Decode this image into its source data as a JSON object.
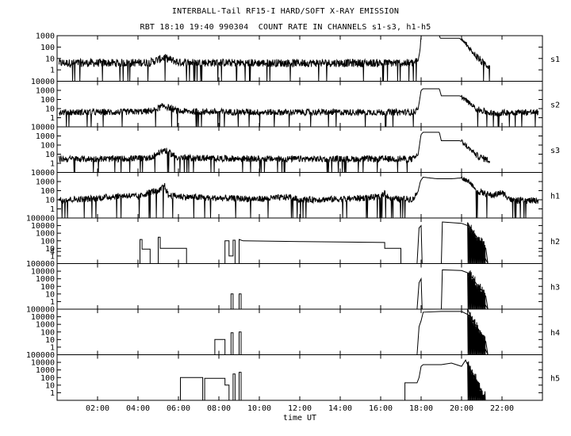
{
  "header": {
    "title": "INTERBALL-Tail RF15-I HARD/SOFT X-RAY EMISSION",
    "subtitle": "RBT 18:10 19:40 990304  COUNT RATE IN CHANNELS s1-s3, h1-h5"
  },
  "chart_data": {
    "type": "line",
    "title": "INTERBALL-Tail RF15-I HARD/SOFT X-RAY EMISSION",
    "subtitle": "RBT 18:10 19:40 990304  COUNT RATE IN CHANNELS s1-s3, h1-h5",
    "xlabel": "time UT",
    "x_range_hours": [
      0,
      24
    ],
    "x_ticks": [
      {
        "value": 2,
        "label": "02:00"
      },
      {
        "value": 4,
        "label": "04:00"
      },
      {
        "value": 6,
        "label": "06:00"
      },
      {
        "value": 8,
        "label": "08:00"
      },
      {
        "value": 10,
        "label": "10:00"
      },
      {
        "value": 12,
        "label": "12:00"
      },
      {
        "value": 14,
        "label": "14:00"
      },
      {
        "value": 16,
        "label": "16:00"
      },
      {
        "value": 18,
        "label": "18:00"
      },
      {
        "value": 20,
        "label": "20:00"
      },
      {
        "value": 22,
        "label": "22:00"
      }
    ],
    "y_scale": "log",
    "panels": [
      {
        "name": "s1",
        "y_range": [
          0.1,
          1000
        ],
        "y_ticks": [
          {
            "value": 1,
            "label": "1"
          },
          {
            "value": 10,
            "label": "10"
          },
          {
            "value": 100,
            "label": "100"
          },
          {
            "value": 1000,
            "label": "1000"
          }
        ],
        "kind": "noisy",
        "series": [
          [
            0.1,
            4
          ],
          [
            3,
            4
          ],
          [
            4.6,
            4.5
          ],
          [
            5.3,
            12
          ],
          [
            6,
            4.5
          ],
          [
            10,
            4
          ],
          [
            14,
            4
          ],
          [
            17.6,
            4
          ],
          [
            17.85,
            6
          ],
          [
            17.95,
            60
          ],
          [
            18.0,
            1000
          ],
          [
            18.9,
            1000
          ],
          [
            18.95,
            600
          ],
          [
            19.1,
            600
          ],
          [
            19.9,
            600
          ],
          [
            20.0,
            400
          ],
          [
            20.2,
            200
          ],
          [
            20.6,
            30
          ],
          [
            21.0,
            5
          ],
          [
            21.4,
            2
          ]
        ]
      },
      {
        "name": "s2",
        "y_range": [
          0.1,
          10000
        ],
        "y_ticks": [
          {
            "value": 1,
            "label": "1"
          },
          {
            "value": 10,
            "label": "10"
          },
          {
            "value": 100,
            "label": "100"
          },
          {
            "value": 1000,
            "label": "1000"
          },
          {
            "value": 10000,
            "label": "10000"
          }
        ],
        "kind": "noisy",
        "series": [
          [
            0.1,
            4
          ],
          [
            3,
            4
          ],
          [
            4.6,
            5
          ],
          [
            5.3,
            20
          ],
          [
            6,
            5
          ],
          [
            10,
            4
          ],
          [
            14,
            4
          ],
          [
            17.6,
            4
          ],
          [
            17.85,
            8
          ],
          [
            17.95,
            200
          ],
          [
            18.0,
            1000
          ],
          [
            18.1,
            1500
          ],
          [
            18.9,
            1500
          ],
          [
            19.0,
            250
          ],
          [
            19.9,
            250
          ],
          [
            20.0,
            200
          ],
          [
            20.3,
            60
          ],
          [
            20.8,
            8
          ],
          [
            21.5,
            3
          ],
          [
            22.5,
            4
          ],
          [
            23.8,
            4
          ]
        ]
      },
      {
        "name": "s3",
        "y_range": [
          0.1,
          10000
        ],
        "y_ticks": [
          {
            "value": 1,
            "label": "1"
          },
          {
            "value": 10,
            "label": "10"
          },
          {
            "value": 100,
            "label": "100"
          },
          {
            "value": 1000,
            "label": "1000"
          },
          {
            "value": 10000,
            "label": "10000"
          }
        ],
        "kind": "noisy",
        "series": [
          [
            0.1,
            3
          ],
          [
            3,
            3
          ],
          [
            4.6,
            4
          ],
          [
            5.3,
            30
          ],
          [
            6,
            4
          ],
          [
            10,
            3
          ],
          [
            14,
            3
          ],
          [
            17.6,
            3
          ],
          [
            17.85,
            8
          ],
          [
            17.95,
            300
          ],
          [
            18.0,
            1500
          ],
          [
            18.1,
            2500
          ],
          [
            18.9,
            2500
          ],
          [
            19.0,
            300
          ],
          [
            19.9,
            300
          ],
          [
            20.0,
            250
          ],
          [
            20.3,
            60
          ],
          [
            20.8,
            6
          ],
          [
            21.4,
            2
          ]
        ]
      },
      {
        "name": "h1",
        "y_range": [
          0.1,
          10000
        ],
        "y_ticks": [
          {
            "value": 1,
            "label": "1"
          },
          {
            "value": 10,
            "label": "10"
          },
          {
            "value": 100,
            "label": "100"
          },
          {
            "value": 1000,
            "label": "1000"
          },
          {
            "value": 10000,
            "label": "10000"
          }
        ],
        "kind": "noisy",
        "series": [
          [
            0.1,
            10
          ],
          [
            1.5,
            12
          ],
          [
            2.5,
            20
          ],
          [
            3.5,
            30
          ],
          [
            4.0,
            20
          ],
          [
            4.3,
            40
          ],
          [
            4.8,
            100
          ],
          [
            5.0,
            60
          ],
          [
            5.3,
            400
          ],
          [
            5.5,
            30
          ],
          [
            6.5,
            20
          ],
          [
            8,
            15
          ],
          [
            10,
            12
          ],
          [
            11.5,
            20
          ],
          [
            12,
            10
          ],
          [
            14,
            12
          ],
          [
            16,
            20
          ],
          [
            16.2,
            60
          ],
          [
            16.5,
            12
          ],
          [
            17.6,
            12
          ],
          [
            17.85,
            80
          ],
          [
            17.95,
            800
          ],
          [
            18.0,
            1500
          ],
          [
            18.1,
            3000
          ],
          [
            18.8,
            2000
          ],
          [
            19.5,
            2000
          ],
          [
            20.0,
            2500
          ],
          [
            20.4,
            1000
          ],
          [
            20.7,
            100
          ],
          [
            21.0,
            60
          ],
          [
            21.5,
            30
          ],
          [
            22.0,
            60
          ],
          [
            22.3,
            20
          ],
          [
            22.5,
            8
          ],
          [
            23.8,
            8
          ]
        ]
      },
      {
        "name": "h2",
        "y_range": [
          0.1,
          100000
        ],
        "y_ticks": [
          {
            "value": 1,
            "label": "1"
          },
          {
            "value": 4,
            "label": "4"
          },
          {
            "value": 10,
            "label": "10"
          },
          {
            "value": 100,
            "label": "100"
          },
          {
            "value": 1000,
            "label": "1000"
          },
          {
            "value": 10000,
            "label": "10000"
          },
          {
            "value": 100000,
            "label": "100000"
          }
        ],
        "kind": "sparse",
        "series": [
          [
            4.1,
            0.1
          ],
          [
            4.1,
            150
          ],
          [
            4.2,
            150
          ],
          [
            4.2,
            8
          ],
          [
            4.6,
            8
          ],
          [
            4.6,
            0.1
          ],
          [
            5.0,
            0.1
          ],
          [
            5.0,
            300
          ],
          [
            5.1,
            300
          ],
          [
            5.1,
            10
          ],
          [
            6.4,
            10
          ],
          [
            6.4,
            0.1
          ],
          [
            8.3,
            0.1
          ],
          [
            8.3,
            100
          ],
          [
            8.5,
            100
          ],
          [
            8.5,
            1
          ],
          [
            8.7,
            1
          ],
          [
            8.7,
            120
          ],
          [
            8.8,
            120
          ],
          [
            8.8,
            0.1
          ],
          [
            9.0,
            0.1
          ],
          [
            9.0,
            150
          ],
          [
            9.2,
            100
          ],
          [
            12.0,
            80
          ],
          [
            14.0,
            70
          ],
          [
            16.2,
            60
          ],
          [
            16.2,
            10
          ],
          [
            17.0,
            10
          ],
          [
            17.0,
            0.1
          ],
          [
            17.8,
            0.1
          ],
          [
            17.9,
            5000
          ],
          [
            18.0,
            10000
          ],
          [
            18.05,
            0.1
          ],
          [
            19.0,
            0.1
          ],
          [
            19.05,
            30000
          ],
          [
            20.0,
            20000
          ],
          [
            20.4,
            8000
          ],
          [
            20.7,
            500
          ],
          [
            21.0,
            50
          ],
          [
            21.2,
            10
          ],
          [
            21.3,
            0.1
          ]
        ]
      },
      {
        "name": "h3",
        "y_range": [
          0.1,
          100000
        ],
        "y_ticks": [
          {
            "value": 1,
            "label": "1"
          },
          {
            "value": 10,
            "label": "10"
          },
          {
            "value": 100,
            "label": "100"
          },
          {
            "value": 1000,
            "label": "1000"
          },
          {
            "value": 10000,
            "label": "10000"
          },
          {
            "value": 100000,
            "label": "100000"
          }
        ],
        "kind": "sparse",
        "series": [
          [
            8.6,
            0.1
          ],
          [
            8.6,
            10
          ],
          [
            8.7,
            10
          ],
          [
            8.7,
            0.1
          ],
          [
            9.0,
            0.1
          ],
          [
            9.0,
            10
          ],
          [
            9.1,
            10
          ],
          [
            9.1,
            0.1
          ],
          [
            17.8,
            0.1
          ],
          [
            17.9,
            300
          ],
          [
            18.0,
            1000
          ],
          [
            18.05,
            0.1
          ],
          [
            19.0,
            0.1
          ],
          [
            19.05,
            15000
          ],
          [
            20.0,
            12000
          ],
          [
            20.4,
            5000
          ],
          [
            20.7,
            300
          ],
          [
            21.0,
            30
          ],
          [
            21.2,
            5
          ],
          [
            21.3,
            0.1
          ]
        ]
      },
      {
        "name": "h4",
        "y_range": [
          0.1,
          100000
        ],
        "y_ticks": [
          {
            "value": 1,
            "label": "1"
          },
          {
            "value": 10,
            "label": "10"
          },
          {
            "value": 100,
            "label": "100"
          },
          {
            "value": 1000,
            "label": "1000"
          },
          {
            "value": 10000,
            "label": "10000"
          },
          {
            "value": 100000,
            "label": "100000"
          }
        ],
        "kind": "sparse",
        "series": [
          [
            7.8,
            0.1
          ],
          [
            7.8,
            10
          ],
          [
            8.3,
            10
          ],
          [
            8.3,
            0.1
          ],
          [
            8.6,
            0.1
          ],
          [
            8.6,
            80
          ],
          [
            8.7,
            80
          ],
          [
            8.7,
            0.1
          ],
          [
            9.0,
            0.1
          ],
          [
            9.0,
            100
          ],
          [
            9.1,
            100
          ],
          [
            9.1,
            0.1
          ],
          [
            17.8,
            0.1
          ],
          [
            17.9,
            500
          ],
          [
            18.0,
            3000
          ],
          [
            18.1,
            40000
          ],
          [
            19.0,
            50000
          ],
          [
            20.0,
            50000
          ],
          [
            20.4,
            15000
          ],
          [
            20.7,
            800
          ],
          [
            21.0,
            50
          ],
          [
            21.2,
            5
          ],
          [
            21.3,
            0.1
          ]
        ]
      },
      {
        "name": "h5",
        "y_range": [
          0.1,
          100000
        ],
        "y_ticks": [
          {
            "value": 1,
            "label": "1"
          },
          {
            "value": 10,
            "label": "10"
          },
          {
            "value": 100,
            "label": "100"
          },
          {
            "value": 1000,
            "label": "1000"
          },
          {
            "value": 10000,
            "label": "10000"
          },
          {
            "value": 100000,
            "label": "100000"
          }
        ],
        "kind": "sparse",
        "series": [
          [
            6.1,
            0.1
          ],
          [
            6.1,
            100
          ],
          [
            7.2,
            100
          ],
          [
            7.2,
            0.1
          ],
          [
            7.3,
            0.1
          ],
          [
            7.3,
            80
          ],
          [
            8.3,
            80
          ],
          [
            8.3,
            10
          ],
          [
            8.5,
            10
          ],
          [
            8.5,
            0.1
          ],
          [
            8.7,
            0.1
          ],
          [
            8.7,
            300
          ],
          [
            8.8,
            300
          ],
          [
            8.8,
            0.1
          ],
          [
            9.0,
            0.1
          ],
          [
            9.0,
            500
          ],
          [
            9.1,
            500
          ],
          [
            9.1,
            0.1
          ],
          [
            17.2,
            0.1
          ],
          [
            17.2,
            20
          ],
          [
            17.8,
            20
          ],
          [
            17.9,
            100
          ],
          [
            18.0,
            3000
          ],
          [
            18.1,
            5000
          ],
          [
            19.0,
            5000
          ],
          [
            19.5,
            8000
          ],
          [
            20.0,
            3000
          ],
          [
            20.2,
            20000
          ],
          [
            20.3,
            5000
          ],
          [
            20.6,
            200
          ],
          [
            20.8,
            20
          ],
          [
            21.0,
            1
          ],
          [
            21.1,
            0.1
          ]
        ]
      }
    ]
  }
}
